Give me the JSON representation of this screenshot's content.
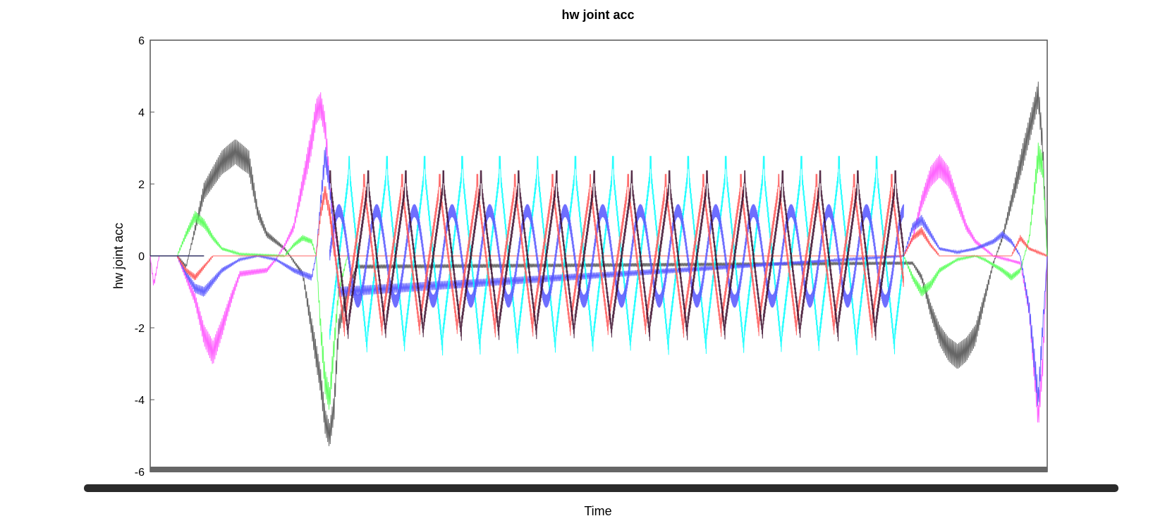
{
  "chart_data": {
    "type": "line",
    "title": "hw joint acc",
    "xlabel": "Time",
    "ylabel": "hw joint acc",
    "ylim": [
      -6,
      6
    ],
    "yticks": [
      "6",
      "4",
      "2",
      "0",
      "-2",
      "-4",
      "-6"
    ],
    "xlim": [
      0,
      100
    ],
    "grid": false,
    "legend": "none",
    "series": [
      {
        "color": "#555555",
        "points": [
          [
            0,
            0
          ],
          [
            3,
            0
          ],
          [
            4,
            -0.3
          ],
          [
            6,
            1.8
          ],
          [
            8,
            2.6
          ],
          [
            9.5,
            2.9
          ],
          [
            11,
            2.6
          ],
          [
            12,
            1.2
          ],
          [
            13,
            0.6
          ],
          [
            15,
            0.2
          ],
          [
            17,
            -0.5
          ],
          [
            18,
            -2.0
          ],
          [
            19,
            -3.5
          ],
          [
            19.5,
            -4.6
          ],
          [
            20,
            -5.0
          ],
          [
            20.5,
            -4.2
          ],
          [
            21,
            -2.0
          ],
          [
            22,
            -1.0
          ],
          [
            23,
            -0.3
          ],
          [
            85,
            -0.2
          ],
          [
            86,
            -0.6
          ],
          [
            87,
            -1.5
          ],
          [
            88,
            -2.2
          ],
          [
            89,
            -2.6
          ],
          [
            90,
            -2.8
          ],
          [
            91,
            -2.6
          ],
          [
            92,
            -2.2
          ],
          [
            93,
            -1.2
          ],
          [
            94,
            -0.2
          ],
          [
            95,
            0.5
          ],
          [
            96,
            1.5
          ],
          [
            97,
            2.5
          ],
          [
            98,
            3.5
          ],
          [
            99,
            4.5
          ],
          [
            99.5,
            3.0
          ],
          [
            100,
            0
          ]
        ]
      },
      {
        "color": "#ff55ff",
        "points": [
          [
            0,
            0
          ],
          [
            0.4,
            -0.8
          ],
          [
            1,
            0
          ],
          [
            3,
            0
          ],
          [
            4,
            -0.6
          ],
          [
            5,
            -1.2
          ],
          [
            6,
            -2.2
          ],
          [
            7,
            -2.7
          ],
          [
            8,
            -2.0
          ],
          [
            9,
            -1.2
          ],
          [
            10,
            -0.5
          ],
          [
            13,
            -0.4
          ],
          [
            14,
            -0.1
          ],
          [
            15,
            0.3
          ],
          [
            16,
            0.8
          ],
          [
            17,
            2.0
          ],
          [
            18,
            3.2
          ],
          [
            18.5,
            4.0
          ],
          [
            19,
            4.2
          ],
          [
            19.5,
            3.6
          ],
          [
            20,
            2.0
          ],
          [
            20.5,
            0.8
          ],
          [
            21,
            0
          ],
          [
            84,
            0
          ],
          [
            85,
            0.5
          ],
          [
            86,
            1.5
          ],
          [
            87,
            2.2
          ],
          [
            88,
            2.5
          ],
          [
            89,
            2.2
          ],
          [
            90,
            1.5
          ],
          [
            91,
            0.8
          ],
          [
            92,
            0.4
          ],
          [
            93,
            0.2
          ],
          [
            94,
            0
          ],
          [
            97,
            -0.2
          ],
          [
            98,
            -1.5
          ],
          [
            98.5,
            -3.0
          ],
          [
            99,
            -4.5
          ],
          [
            99.5,
            -3.0
          ],
          [
            100,
            0
          ]
        ]
      },
      {
        "color": "#55ff55",
        "points": [
          [
            0,
            0
          ],
          [
            3,
            0
          ],
          [
            4,
            0.6
          ],
          [
            5,
            1.1
          ],
          [
            6,
            0.9
          ],
          [
            7,
            0.5
          ],
          [
            8,
            0.2
          ],
          [
            10,
            0.05
          ],
          [
            15,
            0
          ],
          [
            16,
            0.3
          ],
          [
            17,
            0.5
          ],
          [
            18,
            0.4
          ],
          [
            18.5,
            0
          ],
          [
            19,
            -2.0
          ],
          [
            19.5,
            -3.5
          ],
          [
            20,
            -4.0
          ],
          [
            20.5,
            -2.5
          ],
          [
            21,
            -1.0
          ],
          [
            22,
            0
          ],
          [
            84,
            0
          ],
          [
            85,
            -0.6
          ],
          [
            86,
            -1.0
          ],
          [
            87,
            -0.8
          ],
          [
            88,
            -0.4
          ],
          [
            90,
            -0.1
          ],
          [
            92,
            0
          ],
          [
            93,
            -0.1
          ],
          [
            95,
            -0.4
          ],
          [
            96,
            -0.6
          ],
          [
            97,
            -0.4
          ],
          [
            98,
            0.5
          ],
          [
            99,
            2.8
          ],
          [
            99.5,
            2.5
          ],
          [
            100,
            0
          ]
        ]
      },
      {
        "color": "#5555ff",
        "points": [
          [
            0,
            0
          ],
          [
            3,
            0
          ],
          [
            4,
            -0.5
          ],
          [
            5,
            -0.9
          ],
          [
            6,
            -1.0
          ],
          [
            7,
            -0.7
          ],
          [
            8,
            -0.4
          ],
          [
            10,
            -0.1
          ],
          [
            12,
            0
          ],
          [
            14,
            -0.1
          ],
          [
            16,
            -0.4
          ],
          [
            18,
            -0.6
          ],
          [
            18.5,
            0
          ],
          [
            19,
            1.5
          ],
          [
            19.5,
            2.8
          ],
          [
            20,
            2.0
          ],
          [
            20.5,
            0.5
          ],
          [
            21,
            -1.0
          ],
          [
            84,
            0
          ],
          [
            85,
            0.8
          ],
          [
            86,
            1.0
          ],
          [
            87,
            0.6
          ],
          [
            88,
            0.2
          ],
          [
            90,
            0.1
          ],
          [
            92,
            0.2
          ],
          [
            94,
            0.4
          ],
          [
            95,
            0.6
          ],
          [
            96,
            0.4
          ],
          [
            97,
            0
          ],
          [
            98,
            -1.5
          ],
          [
            99,
            -4.0
          ],
          [
            99.5,
            -2.0
          ],
          [
            100,
            0
          ]
        ]
      },
      {
        "color": "#ff5555",
        "points": [
          [
            0,
            0
          ],
          [
            3,
            0
          ],
          [
            4,
            -0.4
          ],
          [
            5,
            -0.6
          ],
          [
            6,
            -0.3
          ],
          [
            7,
            0
          ],
          [
            18.5,
            0
          ],
          [
            19,
            1.2
          ],
          [
            19.5,
            1.8
          ],
          [
            20,
            1.2
          ],
          [
            20.5,
            0
          ],
          [
            84,
            0
          ],
          [
            85,
            0.5
          ],
          [
            86,
            0.7
          ],
          [
            87,
            0.3
          ],
          [
            88,
            0
          ],
          [
            96,
            0
          ],
          [
            97,
            0.5
          ],
          [
            98,
            0.2
          ],
          [
            100,
            0
          ]
        ]
      }
    ],
    "oscillation": {
      "x_range": [
        20,
        84
      ],
      "period": 4.2,
      "series": [
        {
          "color": "#00ffff",
          "amplitude": 2.6,
          "shape": "sawtooth",
          "phase": 0.5
        },
        {
          "color": "#5555ff",
          "amplitude": 1.8,
          "shape": "sine",
          "phase": 0.0
        },
        {
          "color": "#ff5555",
          "amplitude": 2.1,
          "shape": "sawtooth",
          "phase": 0.1
        },
        {
          "color": "#3a0a2a",
          "amplitude": 2.2,
          "shape": "sawtooth",
          "phase": 0.0
        }
      ]
    }
  }
}
